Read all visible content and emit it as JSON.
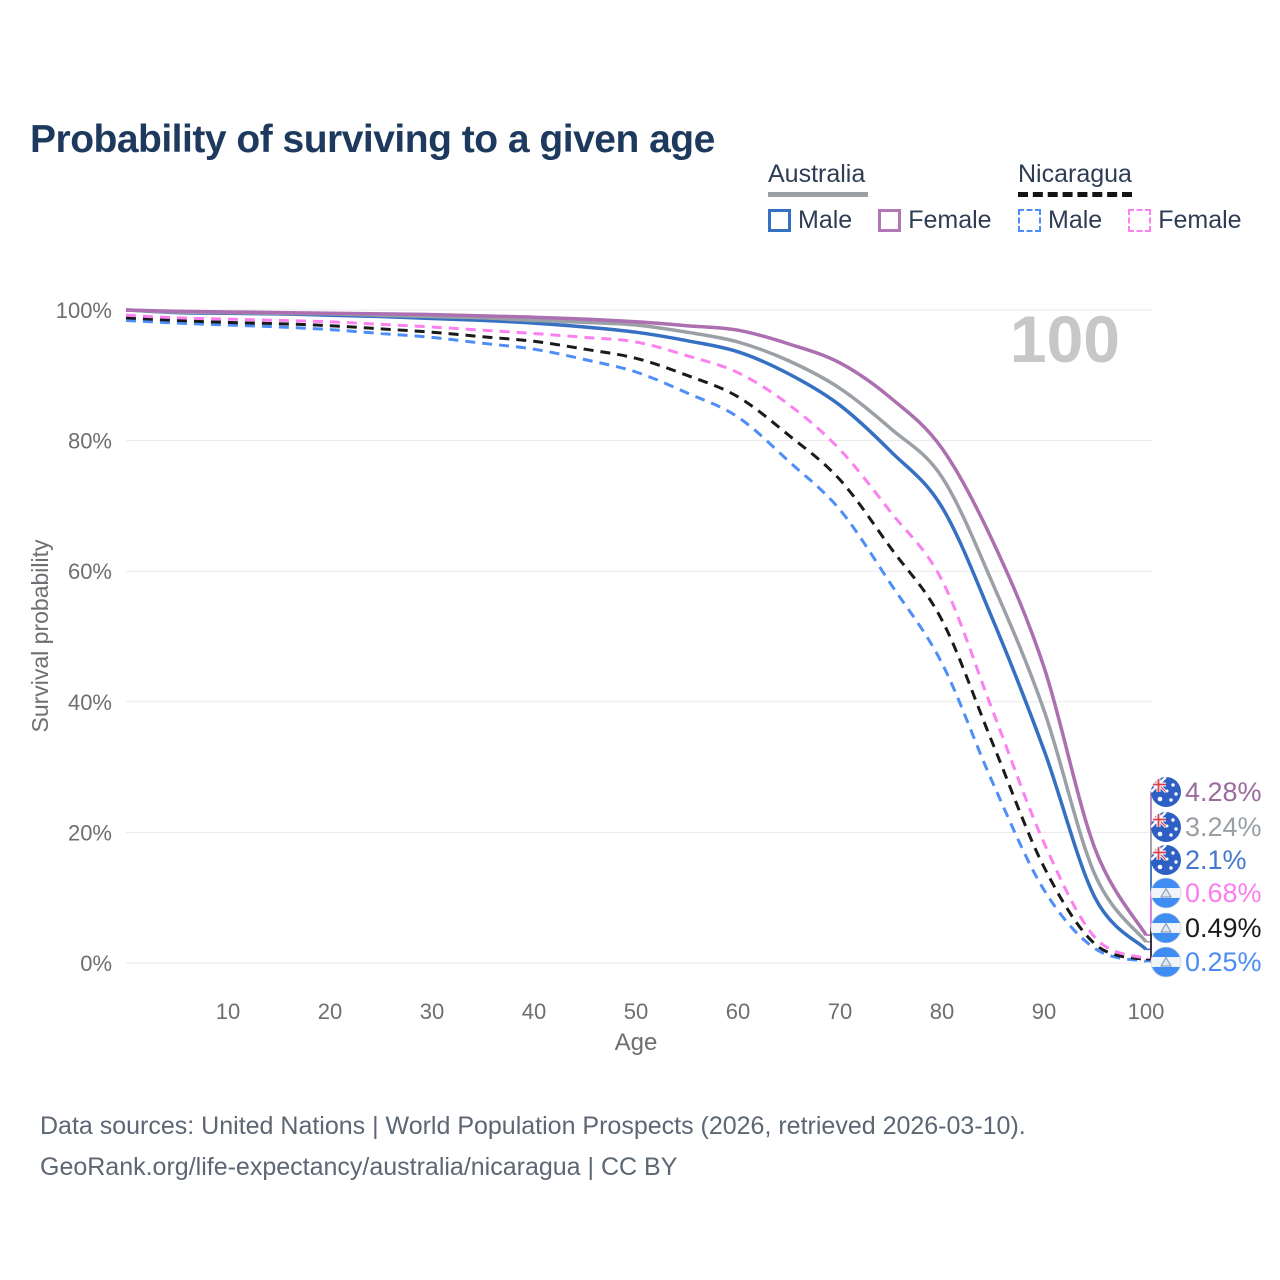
{
  "page": {
    "title": "Probability of surviving to a given age"
  },
  "legend": {
    "groups": [
      {
        "label": "Australia",
        "line_style": "solid",
        "line_color": "#9aa0a6",
        "items": [
          {
            "label": "Male",
            "color": "#3570c2",
            "dashed": false
          },
          {
            "label": "Female",
            "color": "#b277b6",
            "dashed": false
          }
        ]
      },
      {
        "label": "Nicaragua",
        "line_style": "dashed",
        "line_color": "#141414",
        "items": [
          {
            "label": "Male",
            "color": "#4e8ef8",
            "dashed": true
          },
          {
            "label": "Female",
            "color": "#fb80f0",
            "dashed": true
          }
        ]
      }
    ]
  },
  "chart_data": {
    "type": "line",
    "title": "Probability of surviving to a given age",
    "xlabel": "Age",
    "ylabel": "Survival probability",
    "xlim": [
      0,
      100
    ],
    "ylim": [
      0,
      100
    ],
    "x_ticks": [
      10,
      20,
      30,
      40,
      50,
      60,
      70,
      80,
      90,
      100
    ],
    "y_ticks": [
      0,
      20,
      40,
      60,
      80,
      100
    ],
    "y_tick_suffix": "%",
    "grid": "horizontal",
    "legend_position": "top-right",
    "hovered_age": "100",
    "x": [
      0,
      5,
      10,
      15,
      20,
      25,
      30,
      35,
      40,
      45,
      50,
      55,
      60,
      65,
      70,
      75,
      80,
      85,
      90,
      95,
      100
    ],
    "series": [
      {
        "name": "Australia Female",
        "country": "australia",
        "sex": "female",
        "color": "#ac6fb0",
        "label_color": "#9c6b9e",
        "dash": "solid",
        "end_label": "4.28%",
        "values": [
          100,
          99.8,
          99.7,
          99.6,
          99.5,
          99.4,
          99.3,
          99.1,
          98.9,
          98.6,
          98.2,
          97.6,
          96.9,
          94.8,
          91.9,
          86.5,
          78.8,
          64.5,
          45.3,
          17.5,
          4.28
        ]
      },
      {
        "name": "Australia Average",
        "country": "australia",
        "sex": "both",
        "color": "#9ba0a6",
        "label_color": "#9a9fa4",
        "dash": "solid",
        "end_label": "3.24%",
        "values": [
          100,
          99.7,
          99.6,
          99.5,
          99.4,
          99.2,
          99.0,
          98.8,
          98.4,
          98.1,
          97.7,
          96.6,
          95.1,
          92.2,
          88.0,
          81.8,
          74.4,
          58.0,
          38.7,
          13.5,
          3.24
        ]
      },
      {
        "name": "Australia Male",
        "country": "australia",
        "sex": "male",
        "color": "#3570c2",
        "label_color": "#4478cf",
        "dash": "solid",
        "end_label": "2.1%",
        "values": [
          100,
          99.6,
          99.5,
          99.4,
          99.2,
          99.0,
          98.7,
          98.4,
          98.0,
          97.4,
          96.6,
          95.3,
          93.6,
          90.2,
          85.4,
          78.3,
          69.8,
          52.5,
          32.6,
          10.0,
          2.1
        ]
      },
      {
        "name": "Nicaragua Female",
        "country": "nicaragua",
        "sex": "female",
        "color": "#fb80f0",
        "label_color": "#fb7df0",
        "dash": "dashed",
        "end_label": "0.68%",
        "values": [
          99.2,
          98.8,
          98.6,
          98.4,
          98.2,
          97.8,
          97.4,
          96.9,
          96.4,
          95.8,
          95.1,
          93.0,
          90.4,
          85.5,
          78.6,
          69.0,
          58.6,
          38.5,
          18.4,
          3.9,
          0.68
        ]
      },
      {
        "name": "Nicaragua Average",
        "country": "nicaragua",
        "sex": "both",
        "color": "#1a1a1a",
        "label_color": "#1b1b1b",
        "dash": "dashed",
        "end_label": "0.49%",
        "values": [
          98.8,
          98.4,
          98.1,
          97.9,
          97.6,
          97.1,
          96.6,
          95.9,
          95.2,
          94.0,
          92.6,
          90.0,
          86.7,
          80.8,
          74.0,
          63.5,
          52.5,
          33.5,
          14.7,
          2.9,
          0.49
        ]
      },
      {
        "name": "Nicaragua Male",
        "country": "nicaragua",
        "sex": "male",
        "color": "#4e8ef8",
        "label_color": "#4b8cf5",
        "dash": "dashed",
        "end_label": "0.25%",
        "values": [
          98.4,
          98.0,
          97.7,
          97.4,
          97.0,
          96.4,
          95.8,
          94.9,
          94.0,
          92.4,
          90.5,
          87.3,
          83.6,
          76.8,
          69.4,
          58.0,
          45.9,
          27.5,
          11.2,
          2.2,
          0.25
        ]
      }
    ]
  },
  "footer": {
    "line1": "Data sources: United Nations | World Population Prospects (2026, retrieved 2026-03-10).",
    "line2": "GeoRank.org/life-expectancy/australia/nicaragua | CC BY"
  }
}
